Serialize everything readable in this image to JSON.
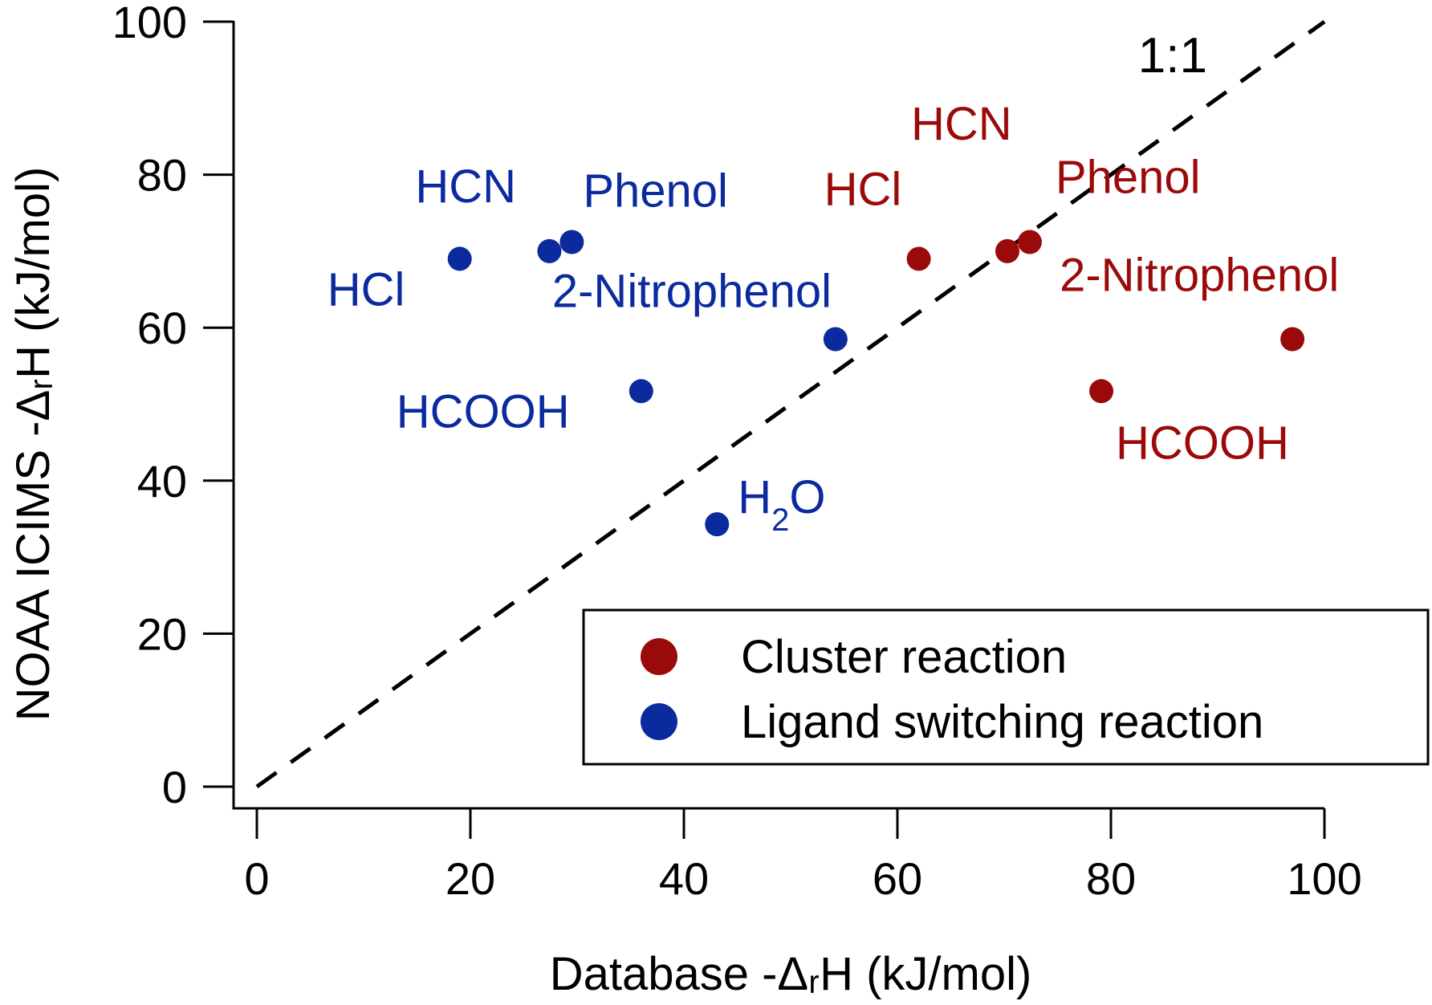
{
  "chart_data": {
    "type": "scatter",
    "xlabel": "Database -ΔᵣH (kJ/mol)",
    "ylabel": "NOAA ICIMS -ΔᵣH (kJ/mol)",
    "xlim": [
      -3,
      100
    ],
    "ylim": [
      -3,
      100
    ],
    "xticks": [
      "0",
      "20",
      "40",
      "60",
      "80",
      "100"
    ],
    "yticks": [
      "0",
      "20",
      "40",
      "60",
      "80",
      "100"
    ],
    "grid": false,
    "reference_line": {
      "label": "1:1",
      "style": "dashed",
      "from": [
        0,
        0
      ],
      "to": [
        100,
        100
      ]
    },
    "legend": {
      "placement": "bottom-right"
    },
    "colors": {
      "cluster": "#9b0a0a",
      "ligand": "#0b2a9e"
    },
    "series": [
      {
        "name": "Cluster reaction",
        "color": "#9b0a0a",
        "points": [
          {
            "label": "HCl",
            "x": 62,
            "y": 69
          },
          {
            "label": "HCN",
            "x": 70.3,
            "y": 70
          },
          {
            "label": "Phenol",
            "x": 72.4,
            "y": 71.2
          },
          {
            "label": "2-Nitrophenol",
            "x": 97,
            "y": 58.5
          },
          {
            "label": "HCOOH",
            "x": 79.1,
            "y": 51.7
          }
        ]
      },
      {
        "name": "Ligand switching reaction",
        "color": "#0b2a9e",
        "points": [
          {
            "label": "HCl",
            "x": 19,
            "y": 69
          },
          {
            "label": "HCN",
            "x": 27.4,
            "y": 70
          },
          {
            "label": "Phenol",
            "x": 29.5,
            "y": 71.2
          },
          {
            "label": "2-Nitrophenol",
            "x": 54.2,
            "y": 58.5
          },
          {
            "label": "HCOOH",
            "x": 36,
            "y": 51.7
          },
          {
            "label": "H2O",
            "x": 43.1,
            "y": 34.3
          }
        ]
      }
    ]
  }
}
